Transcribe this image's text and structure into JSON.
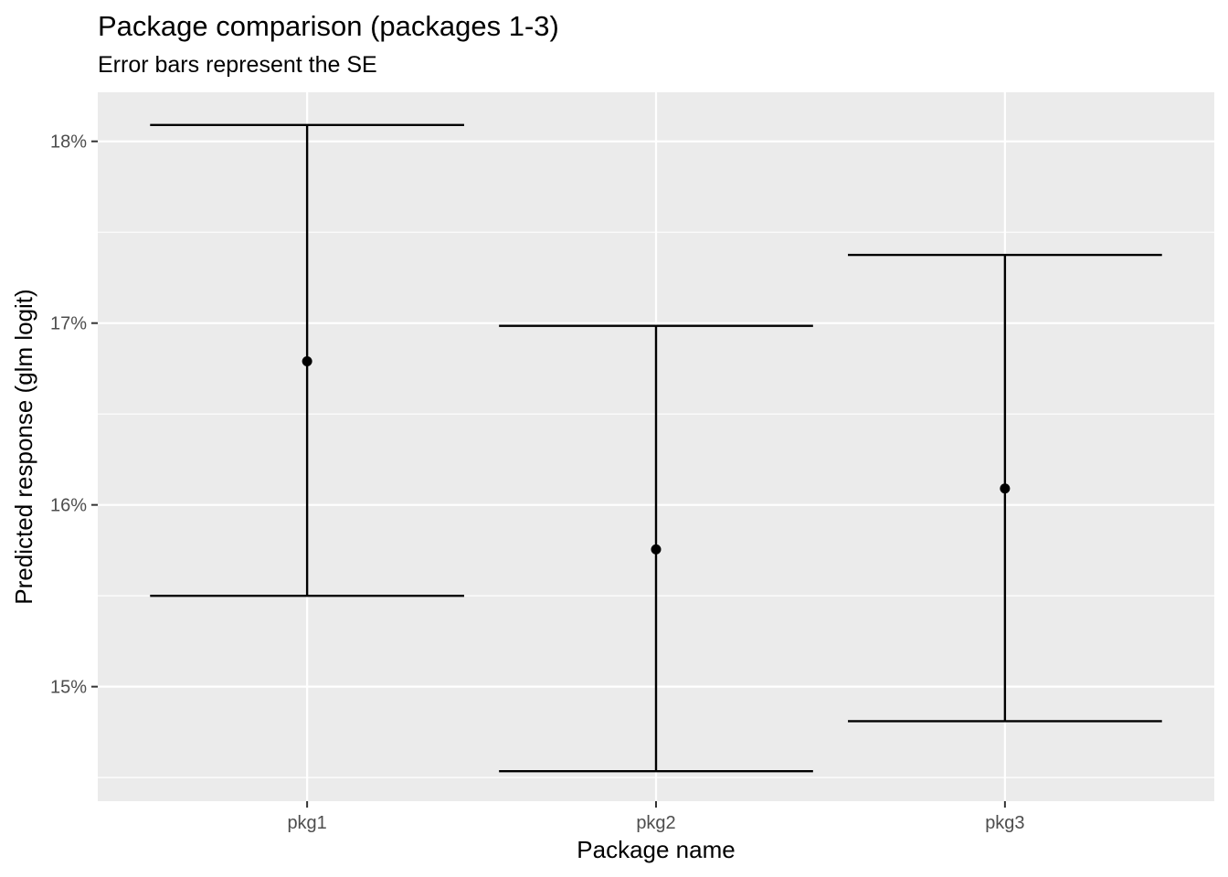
{
  "chart_data": {
    "type": "errorbar",
    "title": "Package comparison (packages 1-3)",
    "subtitle": "Error bars represent the SE",
    "xlabel": "Package name",
    "ylabel": "Predicted response (glm logit)",
    "categories": [
      "pkg1",
      "pkg2",
      "pkg3"
    ],
    "estimate": [
      0.1679,
      0.15755,
      0.1609
    ],
    "lower": [
      0.155,
      0.14535,
      0.1481
    ],
    "upper": [
      0.1809,
      0.16985,
      0.17375
    ],
    "ylim": [
      0.1437,
      0.1827
    ],
    "yticks": [
      0.15,
      0.16,
      0.17,
      0.18
    ],
    "ytick_labels": [
      "15%",
      "16%",
      "17%",
      "18%"
    ],
    "grid": true,
    "colors": {
      "panel": "#ebebeb",
      "grid": "#ffffff",
      "mark": "#000000"
    }
  }
}
